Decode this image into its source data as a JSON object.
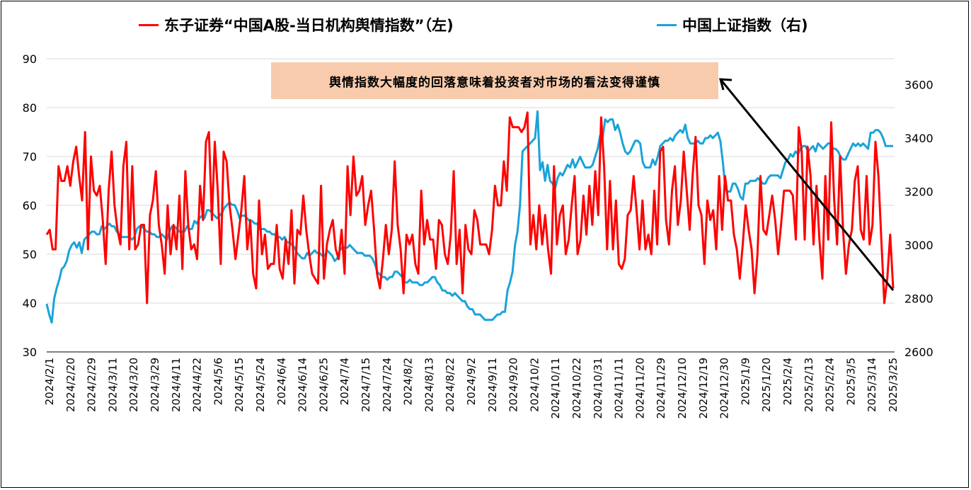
{
  "chart_data": {
    "type": "line",
    "legend": {
      "placement": "top",
      "entries": [
        {
          "label": "东子证券“中国A股-当日机构舆情指数”（左)",
          "color": "#ff0000"
        },
        {
          "label": "中国上证指数（右)",
          "color": "#1aa3d9"
        }
      ]
    },
    "annotation": "舆情指数大幅度的回落意味着投资者对市场的看法变得谨慎",
    "left_axis": {
      "ylim": [
        30,
        90
      ],
      "ticks": [
        "30",
        "40",
        "50",
        "60",
        "70",
        "80",
        "90"
      ]
    },
    "right_axis": {
      "ylim": [
        2600,
        3700
      ],
      "ticks": [
        "2600",
        "2800",
        "3000",
        "3200",
        "3400",
        "3600"
      ]
    },
    "x_tick_labels": [
      "2024/2/1",
      "2024/2/20",
      "2024/2/29",
      "2024/3/11",
      "2024/3/20",
      "2024/3/29",
      "2024/4/11",
      "2024/4/22",
      "2024/5/6",
      "2024/5/15",
      "2024/5/24",
      "2024/6/4",
      "2024/6/14",
      "2024/6/25",
      "2024/7/4",
      "2024/7/15",
      "2024/7/24",
      "2024/8/2",
      "2024/8/13",
      "2024/8/22",
      "2024/9/2",
      "2024/9/11",
      "2024/9/20",
      "2024/10/2",
      "2024/10/11",
      "2024/10/22",
      "2024/10/31",
      "2024/11/11",
      "2024/11/20",
      "2024/11/29",
      "2024/12/10",
      "2024/12/19",
      "2024/12/30",
      "2025/1/9",
      "2025/1/20",
      "2025/2/4",
      "2025/2/13",
      "2025/2/24",
      "2025/3/5",
      "2025/3/14",
      "2025/3/25"
    ],
    "series": [
      {
        "name": "东子证券“中国A股-当日机构舆情指数”（左)",
        "axis": "left",
        "color": "#ff0000",
        "values": [
          54,
          55,
          51,
          51,
          68,
          65,
          65,
          68,
          64,
          69,
          72,
          66,
          61,
          75,
          51,
          70,
          63,
          62,
          64,
          57,
          48,
          63,
          71,
          60,
          55,
          52,
          68,
          73,
          51,
          68,
          51,
          52,
          56,
          56,
          40,
          58,
          61,
          67,
          56,
          52,
          46,
          60,
          50,
          56,
          51,
          62,
          47,
          67,
          56,
          51,
          52,
          49,
          64,
          57,
          73,
          75,
          57,
          73,
          63,
          48,
          71,
          69,
          60,
          55,
          49,
          54,
          59,
          66,
          51,
          57,
          46,
          43,
          61,
          50,
          54,
          47,
          48,
          48,
          56,
          47,
          45,
          53,
          48,
          59,
          44,
          55,
          54,
          62,
          55,
          50,
          46,
          45,
          44,
          64,
          45,
          52,
          55,
          57,
          51,
          49,
          55,
          46,
          68,
          58,
          70,
          62,
          63,
          66,
          56,
          60,
          63,
          55,
          46,
          43,
          49,
          56,
          50,
          55,
          69,
          56,
          51,
          42,
          54,
          52,
          54,
          48,
          46,
          63,
          52,
          57,
          53,
          53,
          47,
          57,
          56,
          50,
          48,
          54,
          67,
          48,
          55,
          42,
          56,
          51,
          50,
          59,
          57,
          52,
          52,
          52,
          50,
          55,
          64,
          60,
          60,
          69,
          63,
          78,
          76,
          76,
          76,
          75,
          76,
          79,
          52,
          58,
          51,
          60,
          52,
          58,
          51,
          46,
          68,
          52,
          58,
          60,
          50,
          53,
          60,
          66,
          50,
          53,
          62,
          54,
          64,
          56,
          67,
          58,
          78,
          68,
          51,
          65,
          51,
          61,
          48,
          47,
          49,
          58,
          59,
          66,
          59,
          51,
          61,
          51,
          54,
          50,
          63,
          52,
          71,
          72,
          57,
          52,
          63,
          68,
          56,
          61,
          71,
          63,
          55,
          66,
          74,
          60,
          58,
          48,
          61,
          57,
          59,
          51,
          66,
          55,
          66,
          61,
          61,
          54,
          51,
          45,
          52,
          60,
          55,
          51,
          42,
          50,
          66,
          55,
          54,
          58,
          62,
          57,
          50,
          56,
          63,
          63,
          63,
          62,
          53,
          76,
          71,
          53,
          72,
          66,
          52,
          64,
          53,
          45,
          66,
          53,
          77,
          61,
          52,
          70,
          55,
          46,
          52,
          55,
          65,
          68,
          55,
          53,
          66,
          52,
          56,
          73,
          66,
          53,
          40,
          45,
          54,
          43
        ]
      },
      {
        "name": "中国上证指数（右)",
        "axis": "right",
        "color": "#1aa3d9",
        "values": [
          2780,
          2740,
          2710,
          2800,
          2840,
          2870,
          2910,
          2920,
          2940,
          2980,
          3000,
          3010,
          2990,
          3010,
          2970,
          3020,
          3030,
          3040,
          3050,
          3050,
          3040,
          3040,
          3070,
          3060,
          3070,
          3080,
          3070,
          3070,
          3050,
          3040,
          3030,
          3030,
          3030,
          3030,
          3020,
          3030,
          3060,
          3070,
          3070,
          3060,
          3050,
          3050,
          3040,
          3040,
          3030,
          3030,
          3040,
          3030,
          3020,
          3050,
          3070,
          3070,
          3060,
          3050,
          3050,
          3050,
          3070,
          3060,
          3060,
          3090,
          3080,
          3100,
          3110,
          3100,
          3130,
          3130,
          3120,
          3110,
          3100,
          3110,
          3120,
          3140,
          3150,
          3160,
          3150,
          3150,
          3130,
          3100,
          3110,
          3110,
          3100,
          3090,
          3090,
          3080,
          3080,
          3060,
          3060,
          3060,
          3050,
          3050,
          3040,
          3040,
          3030,
          3030,
          3020,
          3030,
          3010,
          3010,
          3000,
          2990,
          2970,
          2960,
          2950,
          2950,
          2970,
          2960,
          2970,
          2980,
          2970,
          2970,
          2960,
          2960,
          2980,
          2970,
          2960,
          2940,
          2950,
          2980,
          2990,
          2990,
          2990,
          3000,
          2990,
          2980,
          2970,
          2970,
          2970,
          2960,
          2960,
          2960,
          2950,
          2930,
          2900,
          2890,
          2880,
          2880,
          2870,
          2880,
          2880,
          2900,
          2900,
          2890,
          2880,
          2860,
          2860,
          2870,
          2860,
          2860,
          2860,
          2850,
          2850,
          2860,
          2860,
          2870,
          2880,
          2880,
          2860,
          2850,
          2830,
          2830,
          2820,
          2820,
          2810,
          2820,
          2810,
          2800,
          2790,
          2790,
          2770,
          2760,
          2760,
          2740,
          2740,
          2740,
          2730,
          2720,
          2720,
          2720,
          2720,
          2730,
          2740,
          2740,
          2750,
          2750,
          2830,
          2860,
          2900,
          3000,
          3050,
          3150,
          3350,
          3360,
          3370,
          3380,
          3390,
          3400,
          3500,
          3280,
          3310,
          3240,
          3300,
          3240,
          3230,
          3210,
          3250,
          3270,
          3260,
          3280,
          3300,
          3290,
          3320,
          3290,
          3310,
          3330,
          3310,
          3290,
          3290,
          3290,
          3300,
          3330,
          3360,
          3410,
          3400,
          3470,
          3460,
          3470,
          3470,
          3430,
          3450,
          3420,
          3380,
          3350,
          3340,
          3350,
          3370,
          3390,
          3390,
          3380,
          3310,
          3290,
          3290,
          3290,
          3320,
          3300,
          3330,
          3370,
          3380,
          3390,
          3390,
          3400,
          3390,
          3410,
          3420,
          3430,
          3420,
          3450,
          3400,
          3380,
          3380,
          3380,
          3390,
          3380,
          3380,
          3400,
          3400,
          3410,
          3400,
          3410,
          3420,
          3390,
          3310,
          3210,
          3200,
          3200,
          3230,
          3230,
          3210,
          3180,
          3170,
          3230,
          3230,
          3240,
          3240,
          3240,
          3250,
          3240,
          3230,
          3230,
          3250,
          3260,
          3260,
          3260,
          3260,
          3250,
          3280,
          3310,
          3320,
          3340,
          3330,
          3350,
          3340,
          3360,
          3370,
          3370,
          3350,
          3360,
          3370,
          3350,
          3380,
          3370,
          3360,
          3370,
          3380,
          3380,
          3360,
          3360,
          3350,
          3330,
          3320,
          3320,
          3340,
          3360,
          3380,
          3370,
          3380,
          3370,
          3380,
          3370,
          3360,
          3420,
          3420,
          3430,
          3430,
          3420,
          3400,
          3370,
          3370,
          3370,
          3370
        ]
      }
    ]
  }
}
